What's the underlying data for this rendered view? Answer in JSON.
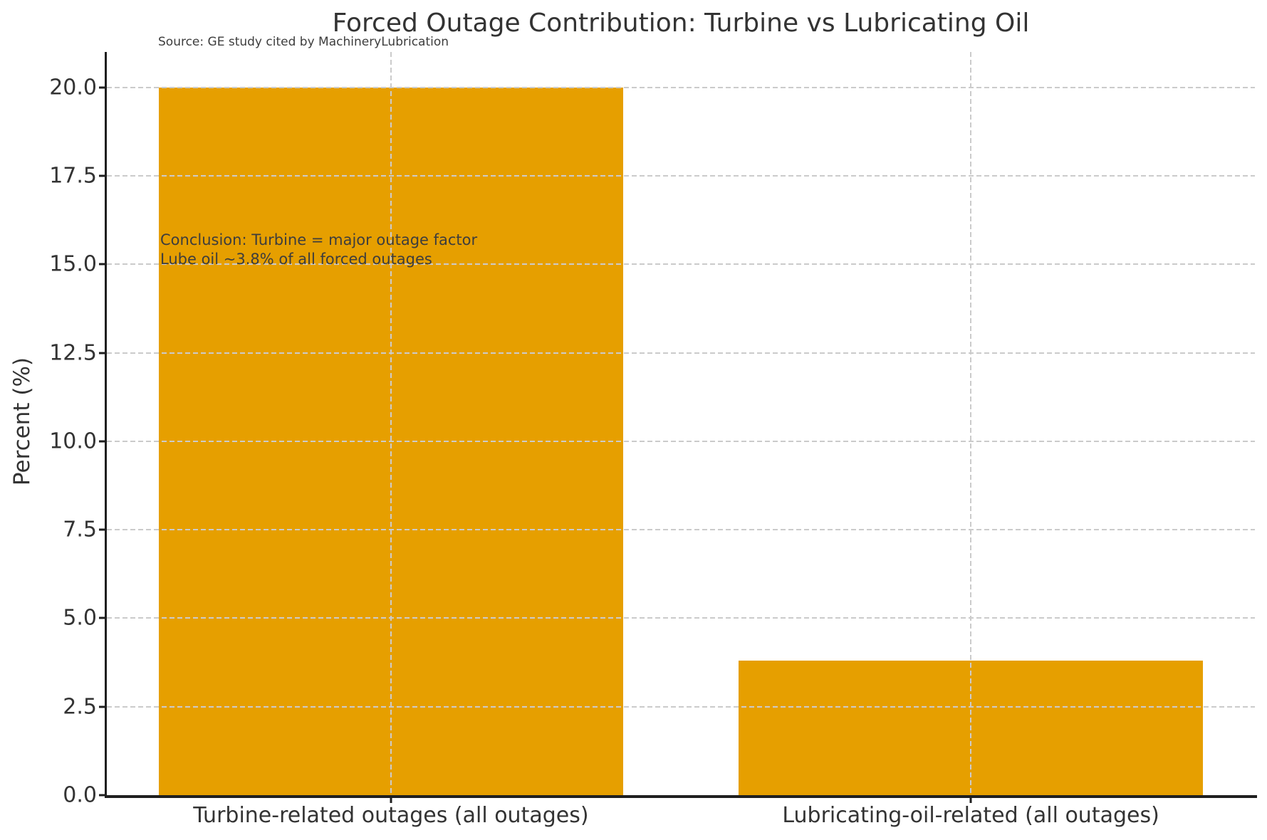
{
  "chart_data": {
    "type": "bar",
    "title": "Forced Outage Contribution: Turbine vs Lubricating Oil",
    "source_note": "Source: GE study cited by MachineryLubrication",
    "annotation": {
      "line1": "Conclusion: Turbine = major outage factor",
      "line2": "Lube oil ~3.8% of all forced outages"
    },
    "categories": [
      "Turbine-related outages (all outages)",
      "Lubricating-oil-related (all outages)"
    ],
    "values": [
      20.0,
      3.8
    ],
    "xlabel": "",
    "ylabel": "Percent (%)",
    "yticks": [
      0.0,
      2.5,
      5.0,
      7.5,
      10.0,
      12.5,
      15.0,
      17.5,
      20.0
    ],
    "ylim": [
      0,
      21
    ],
    "xlim": [
      -0.49,
      1.49
    ],
    "bar_width_fraction": 0.8,
    "grid": true,
    "legend": "none",
    "colors": {
      "bar": "#E69F00",
      "grid": "#cbcbcb",
      "spine": "#1f1f1f",
      "text": "#333333",
      "annotation_text": "#3d3d3d",
      "background": "#ffffff"
    }
  }
}
